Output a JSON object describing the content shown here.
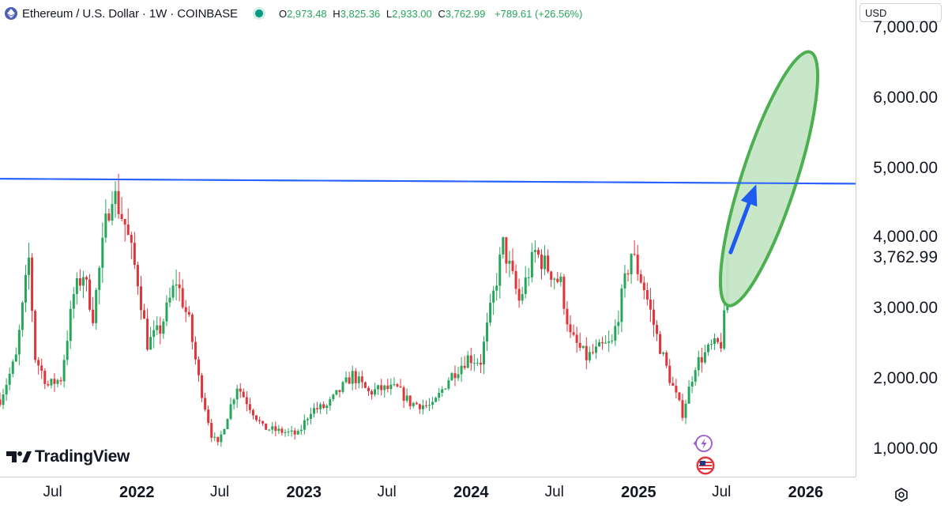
{
  "header": {
    "symbol_title": "Ethereum / U.S. Dollar · 1W · COINBASE",
    "open_label": "O",
    "open": "2,973.48",
    "high_label": "H",
    "high": "3,825.36",
    "low_label": "L",
    "low": "2,933.00",
    "close_label": "C",
    "close": "3,762.99",
    "change": "+789.61 (+26.56%)"
  },
  "currency": "USD",
  "watermark": "TradingView",
  "colors": {
    "up": "#26a65b",
    "down": "#e0353b",
    "resistance": "#2962ff",
    "ellipse_fill": "#c5e6c6",
    "ellipse_stroke": "#4caf50",
    "arrow": "#1e5bf0"
  },
  "chart_data": {
    "type": "candlestick",
    "timeframe": "1W",
    "x_range": [
      "2021-03-08",
      "2026-04-20"
    ],
    "y_range": [
      600,
      7400
    ],
    "y_ticks": [
      "1,000.00",
      "2,000.00",
      "3,000.00",
      "4,000.00",
      "5,000.00",
      "6,000.00",
      "7,000.00"
    ],
    "y_tick_values": [
      1000,
      2000,
      3000,
      4000,
      5000,
      6000,
      7000
    ],
    "x_ticks": [
      {
        "label": "Jul",
        "date": "2021-07-01",
        "major": false
      },
      {
        "label": "2022",
        "date": "2022-01-01",
        "major": true
      },
      {
        "label": "Jul",
        "date": "2022-07-01",
        "major": false
      },
      {
        "label": "2023",
        "date": "2023-01-01",
        "major": true
      },
      {
        "label": "Jul",
        "date": "2023-07-01",
        "major": false
      },
      {
        "label": "2024",
        "date": "2024-01-01",
        "major": true
      },
      {
        "label": "Jul",
        "date": "2024-07-01",
        "major": false
      },
      {
        "label": "2025",
        "date": "2025-01-01",
        "major": true
      },
      {
        "label": "Jul",
        "date": "2025-07-01",
        "major": false
      },
      {
        "label": "2026",
        "date": "2026-01-01",
        "major": true
      }
    ],
    "last_price_label": "3,762.99",
    "last_price": 3762.99,
    "resistance_line": {
      "start": [
        "2021-03-01",
        4850
      ],
      "end": [
        "2026-04-20",
        4780
      ]
    },
    "target_ellipse": {
      "center": [
        "2025-10-13",
        4850
      ],
      "x_radius_weeks": 8.5,
      "y_radius": 1900
    },
    "arrow": {
      "from": [
        "2025-07-21",
        3800
      ],
      "to": [
        "2025-09-15",
        4770
      ]
    },
    "candles_weekly_close_path": {
      "start": "2021-03-08",
      "anchors": [
        [
          "2021-03-08",
          1700
        ],
        [
          "2021-04-12",
          2300
        ],
        [
          "2021-05-10",
          3700
        ],
        [
          "2021-05-24",
          2300
        ],
        [
          "2021-06-21",
          1900
        ],
        [
          "2021-07-19",
          2000
        ],
        [
          "2021-08-16",
          3200
        ],
        [
          "2021-09-06",
          3500
        ],
        [
          "2021-09-27",
          2900
        ],
        [
          "2021-10-25",
          4200
        ],
        [
          "2021-11-08",
          4700
        ],
        [
          "2021-12-06",
          4200
        ],
        [
          "2022-01-03",
          3400
        ],
        [
          "2022-01-24",
          2500
        ],
        [
          "2022-02-21",
          2700
        ],
        [
          "2022-03-28",
          3400
        ],
        [
          "2022-04-25",
          2800
        ],
        [
          "2022-05-16",
          2000
        ],
        [
          "2022-06-13",
          1200
        ],
        [
          "2022-06-27",
          1050
        ],
        [
          "2022-08-08",
          1900
        ],
        [
          "2022-09-05",
          1600
        ],
        [
          "2022-10-03",
          1300
        ],
        [
          "2022-11-07",
          1250
        ],
        [
          "2022-12-19",
          1200
        ],
        [
          "2023-01-16",
          1550
        ],
        [
          "2023-02-20",
          1600
        ],
        [
          "2023-04-17",
          2050
        ],
        [
          "2023-05-22",
          1800
        ],
        [
          "2023-06-19",
          1850
        ],
        [
          "2023-07-24",
          1850
        ],
        [
          "2023-08-21",
          1650
        ],
        [
          "2023-10-09",
          1600
        ],
        [
          "2023-11-13",
          2000
        ],
        [
          "2023-12-25",
          2300
        ],
        [
          "2024-01-22",
          2250
        ],
        [
          "2024-03-11",
          3900
        ],
        [
          "2024-04-15",
          3100
        ],
        [
          "2024-05-20",
          3800
        ],
        [
          "2024-07-15",
          3350
        ],
        [
          "2024-08-05",
          2600
        ],
        [
          "2024-09-09",
          2300
        ],
        [
          "2024-10-14",
          2450
        ],
        [
          "2024-11-04",
          2500
        ],
        [
          "2024-12-16",
          3800
        ],
        [
          "2025-01-13",
          3300
        ],
        [
          "2025-02-10",
          2600
        ],
        [
          "2025-03-10",
          2000
        ],
        [
          "2025-04-07",
          1500
        ],
        [
          "2025-05-05",
          2200
        ],
        [
          "2025-06-09",
          2450
        ],
        [
          "2025-06-30",
          2500
        ],
        [
          "2025-07-07",
          2970
        ],
        [
          "2025-07-14",
          3762.99
        ]
      ]
    }
  }
}
